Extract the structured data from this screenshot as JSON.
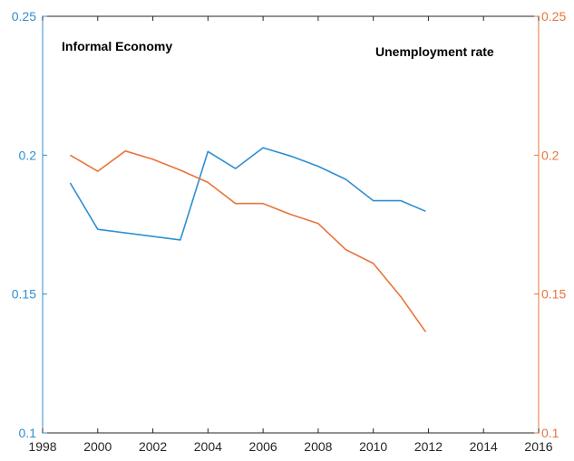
{
  "chart_data": {
    "type": "line",
    "annotations": [
      "Informal Economy",
      "Unemployment rate"
    ],
    "xlim": [
      1998,
      2016
    ],
    "x_ticks": [
      "1998",
      "2000",
      "2002",
      "2004",
      "2006",
      "2008",
      "2010",
      "2012",
      "2014",
      "2016"
    ],
    "left_axis": {
      "ylim": [
        0.1,
        0.25
      ],
      "ticks": [
        "0.1",
        "0.15",
        "0.2",
        "0.25"
      ],
      "color": "#2e8fd0"
    },
    "right_axis": {
      "ylim": [
        0.1,
        0.25
      ],
      "ticks": [
        "0.1",
        "0.15",
        "0.2",
        "0.25"
      ],
      "color": "#e8743b"
    },
    "grid": false,
    "series": [
      {
        "axis": "left",
        "color": "#2e8fd0",
        "x": [
          1999,
          2000,
          2003,
          2004,
          2005,
          2006,
          2007,
          2008,
          2009,
          2010,
          2011,
          2011.9
        ],
        "y": [
          0.19,
          0.1733,
          0.1695,
          0.2013,
          0.1952,
          0.2027,
          0.1997,
          0.196,
          0.1913,
          0.1836,
          0.1836,
          0.1798
        ]
      },
      {
        "axis": "right",
        "color": "#e8743b",
        "x": [
          1999,
          2000,
          2001,
          2002,
          2003,
          2004,
          2005,
          2006,
          2007,
          2008,
          2009,
          2010,
          2011,
          2011.9
        ],
        "y": [
          0.2,
          0.1942,
          0.2015,
          0.1985,
          0.1946,
          0.1902,
          0.1826,
          0.1826,
          0.1787,
          0.1754,
          0.166,
          0.161,
          0.149,
          0.1364
        ]
      }
    ]
  }
}
